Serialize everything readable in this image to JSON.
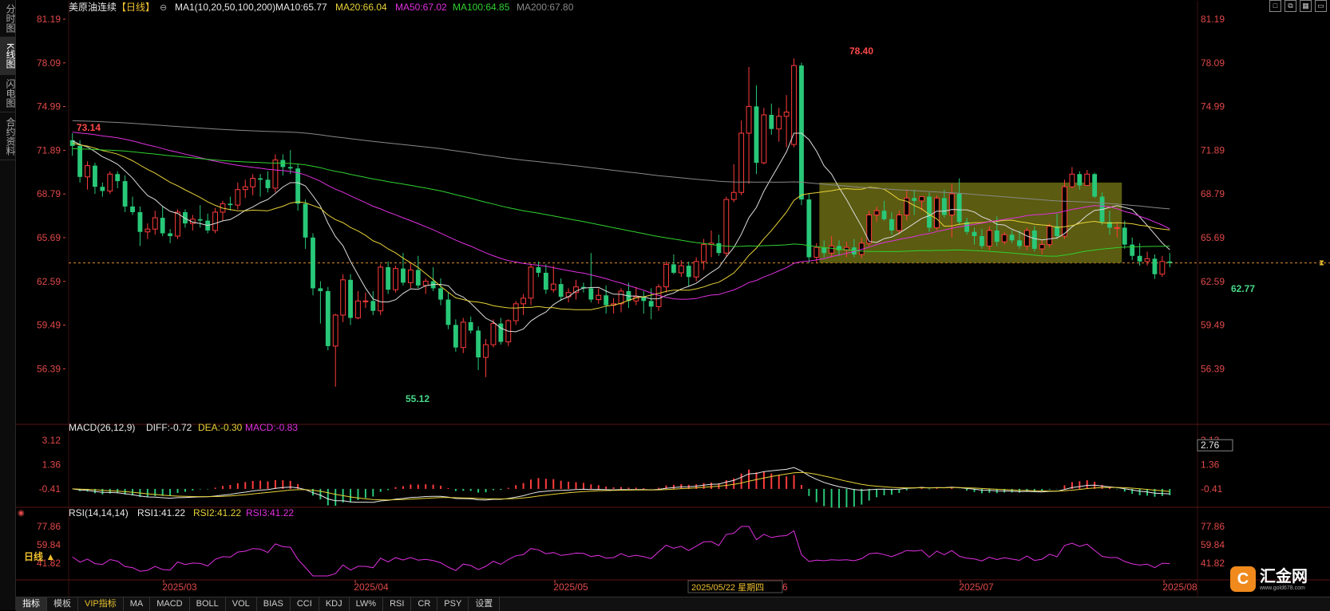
{
  "side_tabs": [
    {
      "label": "分时图",
      "active": false
    },
    {
      "label": "K线图",
      "active": true
    },
    {
      "label": "闪电图",
      "active": false
    },
    {
      "label": "合约资料",
      "active": false
    }
  ],
  "header": {
    "symbol": "美原油连续",
    "period": "【日线】",
    "ma_label": "MA1(10,20,50,100,200)",
    "ma10": "MA10:65.77",
    "ma20": "MA20:66.04",
    "ma50": "MA50:67.02",
    "ma100": "MA100:64.85",
    "ma200": "MA200:67.80"
  },
  "macd_header": {
    "label": "MACD(26,12,9)",
    "diff": "DIFF:-0.72",
    "dea": "DEA:-0.30",
    "macd": "MACD:-0.83"
  },
  "rsi_header": {
    "label": "RSI(14,14,14)",
    "rsi1": "RSI1:41.22",
    "rsi2": "RSI2:41.22",
    "rsi3": "RSI3:41.22"
  },
  "price_axis_labels": [
    "81.19",
    "78.09",
    "74.99",
    "71.89",
    "68.79",
    "65.69",
    "62.59",
    "59.49",
    "56.39"
  ],
  "macd_axis_labels": [
    "3.12",
    "1.36",
    "-0.41"
  ],
  "macd_current_label": "2.76",
  "rsi_axis_labels": [
    "77.86",
    "59.84",
    "41.82"
  ],
  "date_labels": [
    "2025/03",
    "2025/04",
    "2025/05",
    "2025/06",
    "2025/07",
    "2025/08"
  ],
  "crosshair_date": "2025/05/22 星期四",
  "annotations": {
    "high": "78.40",
    "low": "55.12",
    "start_high": "73.14",
    "recent_low": "62.77"
  },
  "period_button": "日线 ▲",
  "bottom_tabs": [
    "指标",
    "模板",
    "VIP指标",
    "MA",
    "MACD",
    "BOLL",
    "VOL",
    "BIAS",
    "CCI",
    "KDJ",
    "LW%",
    "RSI",
    "CR",
    "PSY",
    "设置"
  ],
  "logo": {
    "icon": "C",
    "name": "汇金网",
    "url": "www.gold678.com"
  },
  "window_controls": [
    "maximize-icon",
    "tile-icon",
    "grid-icon",
    "restore-icon"
  ],
  "colors": {
    "up": "#ff3b3b",
    "down": "#28c878",
    "ma10": "#dddddd",
    "ma20": "#e8d238",
    "ma50": "#e030e0",
    "ma100": "#30d030",
    "ma200": "#888888",
    "axis": "#e04848",
    "highlight_box": "#6b6b14"
  },
  "chart_data": {
    "type": "candlestick",
    "ylim": [
      54,
      82
    ],
    "current_price": 63.9,
    "candles": [
      [
        72.6,
        73.1,
        71.5,
        72.2
      ],
      [
        72.2,
        72.6,
        69.6,
        70.0
      ],
      [
        70.0,
        71.1,
        69.1,
        70.8
      ],
      [
        70.8,
        71.0,
        68.8,
        69.3
      ],
      [
        69.3,
        69.6,
        68.6,
        69.0
      ],
      [
        69.0,
        70.4,
        68.8,
        70.2
      ],
      [
        70.2,
        70.4,
        69.2,
        69.7
      ],
      [
        69.7,
        70.1,
        67.5,
        67.9
      ],
      [
        67.9,
        68.6,
        67.3,
        67.5
      ],
      [
        67.5,
        67.9,
        65.1,
        66.1
      ],
      [
        66.1,
        66.7,
        65.6,
        66.3
      ],
      [
        66.3,
        67.6,
        65.9,
        67.1
      ],
      [
        67.1,
        67.9,
        65.8,
        66.0
      ],
      [
        66.0,
        66.3,
        65.3,
        65.8
      ],
      [
        65.8,
        67.7,
        65.6,
        67.5
      ],
      [
        67.5,
        67.7,
        66.4,
        66.7
      ],
      [
        66.7,
        67.3,
        66.2,
        67.0
      ],
      [
        67.0,
        68.0,
        66.4,
        66.9
      ],
      [
        66.9,
        67.4,
        66.0,
        66.2
      ],
      [
        66.2,
        67.8,
        66.0,
        67.5
      ],
      [
        67.5,
        68.3,
        66.9,
        68.1
      ],
      [
        68.1,
        68.6,
        67.6,
        68.0
      ],
      [
        68.0,
        69.6,
        67.7,
        69.1
      ],
      [
        69.1,
        69.8,
        68.5,
        69.3
      ],
      [
        69.3,
        70.2,
        68.7,
        69.9
      ],
      [
        69.9,
        70.2,
        68.6,
        69.8
      ],
      [
        69.8,
        70.4,
        68.9,
        69.2
      ],
      [
        69.2,
        71.6,
        68.9,
        71.2
      ],
      [
        71.2,
        71.6,
        70.1,
        70.7
      ],
      [
        70.7,
        71.9,
        70.2,
        70.6
      ],
      [
        70.6,
        70.9,
        67.6,
        68.1
      ],
      [
        68.1,
        68.4,
        64.9,
        65.7
      ],
      [
        65.7,
        66.0,
        61.6,
        62.1
      ],
      [
        62.1,
        62.6,
        59.6,
        61.9
      ],
      [
        61.9,
        62.2,
        57.7,
        58.0
      ],
      [
        58.0,
        60.3,
        55.12,
        60.2
      ],
      [
        60.2,
        63.1,
        59.7,
        62.7
      ],
      [
        62.7,
        63.1,
        59.5,
        60.0
      ],
      [
        60.0,
        61.9,
        59.9,
        61.2
      ],
      [
        61.2,
        61.8,
        60.7,
        61.2
      ],
      [
        61.2,
        61.9,
        60.2,
        60.5
      ],
      [
        60.5,
        63.8,
        60.2,
        63.6
      ],
      [
        63.6,
        64.0,
        61.7,
        62.0
      ],
      [
        62.0,
        63.7,
        61.8,
        63.5
      ],
      [
        63.5,
        64.6,
        62.3,
        62.5
      ],
      [
        62.5,
        63.9,
        62.1,
        63.4
      ],
      [
        63.4,
        64.4,
        62.1,
        62.3
      ],
      [
        62.3,
        62.8,
        61.7,
        62.6
      ],
      [
        62.6,
        63.6,
        61.9,
        62.1
      ],
      [
        62.1,
        62.8,
        60.9,
        61.3
      ],
      [
        61.3,
        61.8,
        59.2,
        59.5
      ],
      [
        59.5,
        59.9,
        57.6,
        57.9
      ],
      [
        57.9,
        60.0,
        57.5,
        59.7
      ],
      [
        59.7,
        60.1,
        58.9,
        59.1
      ],
      [
        59.1,
        59.4,
        56.3,
        57.2
      ],
      [
        57.2,
        58.5,
        55.8,
        58.1
      ],
      [
        58.1,
        59.9,
        57.9,
        59.6
      ],
      [
        59.6,
        60.0,
        58.1,
        58.3
      ],
      [
        58.3,
        59.9,
        58.0,
        59.8
      ],
      [
        59.8,
        61.2,
        59.5,
        61.0
      ],
      [
        61.0,
        61.7,
        60.2,
        61.4
      ],
      [
        61.4,
        63.8,
        60.9,
        63.6
      ],
      [
        63.6,
        64.0,
        62.9,
        63.2
      ],
      [
        63.2,
        63.8,
        61.7,
        62.0
      ],
      [
        62.0,
        63.7,
        61.8,
        62.4
      ],
      [
        62.4,
        62.8,
        61.2,
        61.5
      ],
      [
        61.5,
        62.1,
        61.1,
        61.8
      ],
      [
        61.8,
        62.7,
        61.3,
        62.2
      ],
      [
        62.2,
        62.5,
        61.8,
        62.1
      ],
      [
        62.1,
        64.6,
        61.1,
        61.3
      ],
      [
        61.3,
        62.1,
        61.0,
        61.6
      ],
      [
        61.6,
        62.3,
        60.3,
        60.9
      ],
      [
        60.9,
        61.4,
        60.3,
        61.0
      ],
      [
        61.0,
        62.1,
        60.4,
        61.9
      ],
      [
        61.9,
        62.5,
        60.7,
        61.2
      ],
      [
        61.2,
        62.2,
        60.9,
        61.5
      ],
      [
        61.5,
        61.9,
        60.3,
        61.2
      ],
      [
        61.2,
        62.1,
        59.9,
        60.8
      ],
      [
        60.8,
        62.4,
        60.5,
        62.2
      ],
      [
        62.2,
        64.0,
        61.8,
        63.8
      ],
      [
        63.8,
        64.5,
        63.1,
        63.2
      ],
      [
        63.2,
        64.1,
        62.9,
        63.7
      ],
      [
        63.7,
        64.0,
        62.2,
        62.9
      ],
      [
        62.9,
        64.3,
        62.6,
        64.0
      ],
      [
        64.0,
        65.6,
        63.4,
        65.2
      ],
      [
        65.2,
        66.2,
        64.3,
        65.3
      ],
      [
        65.3,
        65.9,
        64.4,
        64.6
      ],
      [
        64.6,
        68.6,
        64.3,
        68.4
      ],
      [
        68.4,
        70.9,
        68.2,
        68.9
      ],
      [
        68.9,
        74.0,
        68.7,
        73.1
      ],
      [
        73.1,
        77.8,
        69.5,
        75.0
      ],
      [
        75.0,
        76.5,
        70.2,
        71.0
      ],
      [
        71.0,
        74.9,
        70.9,
        74.4
      ],
      [
        74.4,
        75.2,
        73.0,
        73.4
      ],
      [
        73.4,
        74.9,
        72.5,
        74.3
      ],
      [
        74.3,
        75.8,
        72.1,
        74.6
      ],
      [
        72.3,
        78.4,
        72.1,
        77.9
      ],
      [
        77.9,
        78.1,
        68.0,
        68.4
      ],
      [
        68.4,
        68.8,
        63.9,
        64.3
      ],
      [
        64.3,
        65.3,
        63.9,
        65.0
      ],
      [
        65.0,
        65.5,
        64.3,
        64.6
      ],
      [
        64.6,
        65.8,
        64.3,
        65.1
      ],
      [
        65.1,
        65.5,
        64.4,
        64.8
      ],
      [
        64.8,
        65.4,
        64.3,
        65.0
      ],
      [
        65.0,
        65.6,
        64.3,
        64.5
      ],
      [
        64.5,
        65.7,
        64.2,
        65.3
      ],
      [
        65.3,
        67.6,
        65.1,
        67.3
      ],
      [
        67.3,
        67.9,
        66.8,
        67.6
      ],
      [
        67.6,
        68.3,
        66.9,
        67.0
      ],
      [
        67.0,
        67.5,
        65.9,
        66.2
      ],
      [
        66.2,
        67.6,
        65.9,
        67.3
      ],
      [
        67.3,
        69.1,
        66.9,
        68.5
      ],
      [
        68.5,
        69.1,
        67.3,
        68.3
      ],
      [
        68.3,
        68.6,
        67.6,
        68.6
      ],
      [
        68.6,
        68.9,
        66.1,
        66.4
      ],
      [
        66.4,
        68.7,
        66.2,
        68.5
      ],
      [
        68.5,
        69.1,
        67.1,
        67.3
      ],
      [
        67.3,
        69.5,
        65.7,
        68.8
      ],
      [
        68.8,
        69.9,
        66.6,
        66.8
      ],
      [
        66.8,
        67.1,
        65.9,
        66.1
      ],
      [
        66.1,
        66.4,
        65.2,
        65.8
      ],
      [
        65.8,
        66.3,
        64.9,
        65.1
      ],
      [
        65.1,
        66.5,
        64.8,
        66.2
      ],
      [
        66.2,
        67.2,
        65.1,
        65.4
      ],
      [
        65.4,
        66.1,
        65.2,
        65.9
      ],
      [
        65.9,
        66.2,
        65.3,
        65.5
      ],
      [
        65.5,
        66.2,
        64.9,
        65.1
      ],
      [
        65.1,
        66.4,
        64.8,
        66.2
      ],
      [
        66.2,
        66.5,
        64.7,
        64.9
      ],
      [
        64.9,
        65.5,
        64.5,
        65.2
      ],
      [
        65.2,
        66.7,
        65.0,
        66.5
      ],
      [
        66.5,
        67.4,
        65.6,
        65.8
      ],
      [
        65.8,
        69.8,
        65.6,
        69.3
      ],
      [
        69.3,
        70.7,
        69.2,
        70.2
      ],
      [
        70.2,
        70.4,
        69.1,
        69.4
      ],
      [
        69.4,
        70.5,
        69.4,
        70.2
      ],
      [
        70.2,
        70.3,
        68.5,
        68.6
      ],
      [
        68.6,
        68.9,
        66.6,
        66.8
      ],
      [
        66.8,
        67.6,
        65.9,
        66.4
      ],
      [
        66.4,
        66.7,
        65.7,
        66.4
      ],
      [
        66.4,
        66.9,
        64.9,
        65.2
      ],
      [
        65.2,
        65.7,
        64.1,
        64.4
      ],
      [
        64.4,
        65.3,
        63.7,
        64.0
      ],
      [
        64.0,
        64.7,
        63.7,
        64.2
      ],
      [
        64.2,
        64.5,
        62.77,
        63.1
      ],
      [
        63.1,
        64.4,
        62.9,
        64.0
      ],
      [
        64.0,
        64.6,
        63.6,
        63.9
      ]
    ]
  }
}
